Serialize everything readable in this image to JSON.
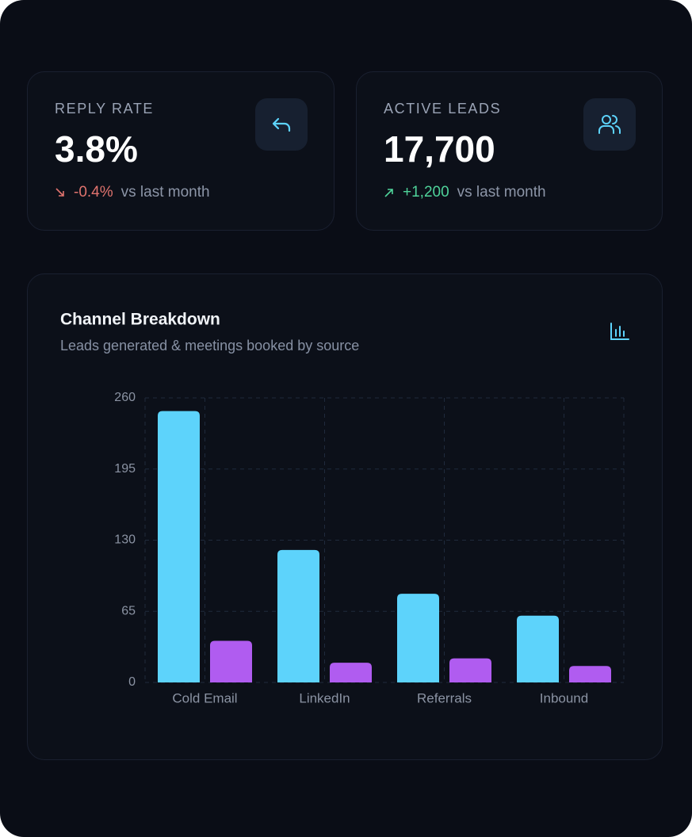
{
  "cards": [
    {
      "label": "REPLY RATE",
      "value": "3.8%",
      "delta": "-0.4%",
      "comparison": "vs last month"
    },
    {
      "label": "ACTIVE LEADS",
      "value": "17,700",
      "delta": "+1,200",
      "comparison": "vs last month"
    }
  ],
  "chart_data": {
    "type": "bar",
    "title": "Channel Breakdown",
    "subtitle": "Leads generated & meetings booked by source",
    "categories": [
      "Cold Email",
      "LinkedIn",
      "Referrals",
      "Inbound"
    ],
    "series": [
      {
        "color": "#5dd3fb",
        "values": [
          248,
          121,
          81,
          61
        ]
      },
      {
        "color": "#b05cf0",
        "values": [
          38,
          18,
          22,
          15
        ]
      }
    ],
    "ylim": [
      0,
      260
    ],
    "yticks": [
      0,
      65,
      130,
      195,
      260
    ],
    "grid": true
  }
}
